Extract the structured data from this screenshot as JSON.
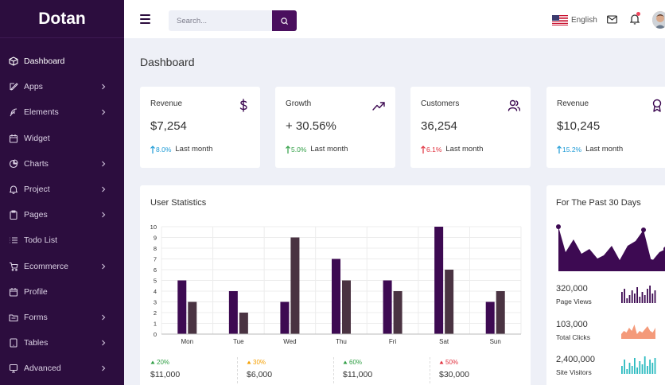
{
  "brand": "Dotan",
  "sidebar": {
    "items": [
      {
        "label": "Dashboard",
        "icon": "cube-icon",
        "chevron": false,
        "active": true
      },
      {
        "label": "Apps",
        "icon": "edit-icon",
        "chevron": true
      },
      {
        "label": "Elements",
        "icon": "feather-icon",
        "chevron": true
      },
      {
        "label": "Widget",
        "icon": "calendar-icon",
        "chevron": false
      },
      {
        "label": "Charts",
        "icon": "pie-chart-icon",
        "chevron": true
      },
      {
        "label": "Project",
        "icon": "bell-icon",
        "chevron": true
      },
      {
        "label": "Pages",
        "icon": "clipboard-icon",
        "chevron": true
      },
      {
        "label": "Todo List",
        "icon": "list-icon",
        "chevron": false
      },
      {
        "label": "Ecommerce",
        "icon": "cart-icon",
        "chevron": true
      },
      {
        "label": "Profile",
        "icon": "calendar-icon",
        "chevron": false
      },
      {
        "label": "Forms",
        "icon": "folder-icon",
        "chevron": true
      },
      {
        "label": "Tables",
        "icon": "tablet-icon",
        "chevron": true
      },
      {
        "label": "Advanced",
        "icon": "monitor-icon",
        "chevron": true
      }
    ]
  },
  "topbar": {
    "search_placeholder": "Search...",
    "language": "English"
  },
  "page_title": "Dashboard",
  "stats": [
    {
      "title": "Revenue",
      "value": "$7,254",
      "change": "8.0%",
      "direction": "up",
      "color": "#1c9ad6",
      "period": "Last month",
      "icon": "dollar-icon"
    },
    {
      "title": "Growth",
      "value": "+ 30.56%",
      "change": "5.0%",
      "direction": "up",
      "color": "#2f9e44",
      "period": "Last month",
      "icon": "trending-up-icon"
    },
    {
      "title": "Customers",
      "value": "36,254",
      "change": "6.1%",
      "direction": "up",
      "color": "#e0303d",
      "period": "Last month",
      "icon": "users-icon"
    },
    {
      "title": "Revenue",
      "value": "$10,245",
      "change": "15.2%",
      "direction": "up",
      "color": "#1c9ad6",
      "period": "Last month",
      "icon": "award-icon"
    }
  ],
  "user_stats": {
    "title": "User Statistics",
    "summary": [
      {
        "change": "20%",
        "direction": "up",
        "color": "#2f9e44",
        "amount": "$11,000"
      },
      {
        "change": "30%",
        "direction": "up",
        "color": "#f59f00",
        "amount": "$6,000"
      },
      {
        "change": "60%",
        "direction": "up",
        "color": "#2f9e44",
        "amount": "$11,000"
      },
      {
        "change": "50%",
        "direction": "up",
        "color": "#e0303d",
        "amount": "$30,000"
      }
    ]
  },
  "chart_data": {
    "type": "bar",
    "categories": [
      "Mon",
      "Tue",
      "Wed",
      "Thu",
      "Fri",
      "Sat",
      "Sun"
    ],
    "series": [
      {
        "values": [
          5,
          4,
          3,
          7,
          5,
          10,
          3
        ],
        "color": "#3d0a52"
      },
      {
        "values": [
          3,
          2,
          9,
          5,
          4,
          6,
          4
        ],
        "color": "#4a3342"
      }
    ],
    "ylim": [
      0,
      10
    ],
    "yticks": [
      0,
      1,
      2,
      3,
      4,
      5,
      6,
      7,
      8,
      9,
      10
    ],
    "grid": true
  },
  "past30": {
    "title": "For The Past 30 Days",
    "color": "#3d0a52",
    "stats": [
      {
        "value": "320,000",
        "label": "Page Views",
        "color": "#3d0a52"
      },
      {
        "value": "103,000",
        "label": "Total Clicks",
        "color": "#f49a7a"
      },
      {
        "value": "2,400,000",
        "label": "Site Visitors",
        "color": "#2bbbc0"
      }
    ]
  }
}
